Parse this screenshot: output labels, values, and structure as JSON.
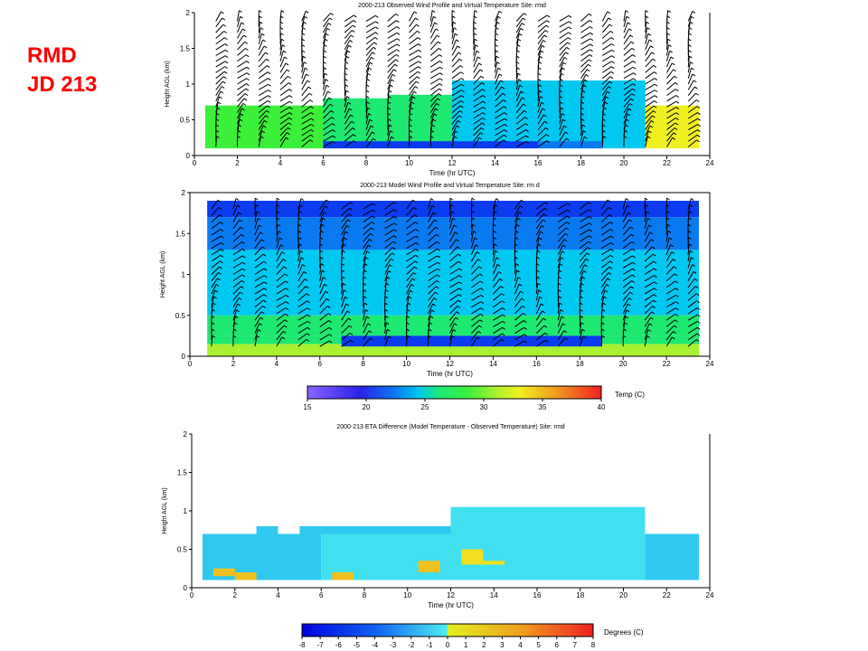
{
  "slide": {
    "site_label": "RMD",
    "day_label": "JD 213"
  },
  "colors": {
    "temperature_scale": [
      "#8a63ff",
      "#2b22e8",
      "#0b3cf0",
      "#0a7af0",
      "#00c8f0",
      "#1de872",
      "#3cf03a",
      "#a8f030",
      "#f0f020",
      "#f0b020",
      "#f07020",
      "#f02020"
    ],
    "difference_negative": [
      "#0000e0",
      "#0a35f0",
      "#1060f0",
      "#1788f0",
      "#20a8f0",
      "#30c8f0",
      "#40e0f0",
      "#50f0f0"
    ],
    "difference_positive": [
      "#e0f020",
      "#f0e020",
      "#f0c020",
      "#f0a020",
      "#f08020",
      "#f06020",
      "#f04020",
      "#f02020"
    ],
    "wind_barb": "#000000"
  },
  "icons": [
    "wind-barb-icon",
    "calm-wind-circle-icon"
  ],
  "chart_data": [
    {
      "type": "heatmap",
      "title": "2000-213   Observed Wind Profile and Virtual Temperature   Site: rmd",
      "xlabel": "Time (hr UTC)",
      "ylabel": "Height AGL (km)",
      "xlim": [
        0,
        24
      ],
      "ylim": [
        0,
        2
      ],
      "xticks": [
        "0",
        "2",
        "4",
        "6",
        "8",
        "10",
        "12",
        "14",
        "16",
        "18",
        "20",
        "22",
        "24"
      ],
      "yticks": [
        "0",
        "0.5",
        "1",
        "1.5",
        "2"
      ],
      "overlay": "wind barbs",
      "cells": [
        {
          "t0": 0.5,
          "t1": 6,
          "h0": 0.1,
          "h1": 0.7,
          "temp": 29
        },
        {
          "t0": 6,
          "t1": 9,
          "h0": 0.1,
          "h1": 0.8,
          "temp": 27
        },
        {
          "t0": 9,
          "t1": 12,
          "h0": 0.1,
          "h1": 0.85,
          "temp": 27
        },
        {
          "t0": 12,
          "t1": 21,
          "h0": 0.1,
          "h1": 1.05,
          "temp": 25
        },
        {
          "t0": 21,
          "t1": 23.5,
          "h0": 0.1,
          "h1": 0.7,
          "temp": 33
        },
        {
          "t0": 6,
          "t1": 10,
          "h0": 0.1,
          "h1": 0.2,
          "temp": 21
        },
        {
          "t0": 10,
          "t1": 16,
          "h0": 0.1,
          "h1": 0.2,
          "temp": 20
        },
        {
          "t0": 16,
          "t1": 19,
          "h0": 0.1,
          "h1": 0.2,
          "temp": 23
        }
      ]
    },
    {
      "type": "heatmap",
      "title": "2000-213   Model Wind Profile and Virtual Temperature   Site: rm d",
      "xlabel": "Time (hr UTC)",
      "ylabel": "Height AGL (km)",
      "xlim": [
        0,
        24
      ],
      "ylim": [
        0,
        2
      ],
      "xticks": [
        "0",
        "2",
        "4",
        "6",
        "8",
        "10",
        "12",
        "14",
        "16",
        "18",
        "20",
        "22",
        "24"
      ],
      "yticks": [
        "0",
        "0.5",
        "1",
        "1.5",
        "2"
      ],
      "overlay": "wind barbs",
      "vertical_profile_temp": [
        {
          "h": 0.05,
          "temp": 30
        },
        {
          "h": 0.15,
          "temp": 26
        },
        {
          "h": 0.4,
          "temp": 26
        },
        {
          "h": 0.8,
          "temp": 25
        },
        {
          "h": 1.2,
          "temp": 24
        },
        {
          "h": 1.6,
          "temp": 23
        },
        {
          "h": 1.8,
          "temp": 21
        },
        {
          "h": 1.95,
          "temp": 19
        }
      ],
      "inversion_layer": {
        "t0": 7,
        "t1": 19,
        "h0": 0.12,
        "h1": 0.25,
        "temp": 20
      }
    },
    {
      "type": "colorbar",
      "label": "Temp (C)",
      "ticks": [
        "15",
        "20",
        "25",
        "30",
        "35",
        "40"
      ],
      "range": [
        15,
        40
      ]
    },
    {
      "type": "heatmap",
      "title": "2000-213   ETA  Difference (Model Temperature - Observed Temperature)   Site: rmd",
      "xlabel": "Time (hr UTC)",
      "ylabel": "Height AGL (km)",
      "xlim": [
        0,
        24
      ],
      "ylim": [
        0,
        2
      ],
      "xticks": [
        "0",
        "2",
        "4",
        "6",
        "8",
        "10",
        "12",
        "14",
        "16",
        "18",
        "20",
        "22",
        "24"
      ],
      "yticks": [
        "0",
        "0.5",
        "1",
        "1.5",
        "2"
      ],
      "cells": [
        {
          "t0": 0.5,
          "t1": 6,
          "h0": 0.1,
          "h1": 0.7,
          "diff": -3
        },
        {
          "t0": 3,
          "t1": 4,
          "h0": 0.7,
          "h1": 0.8,
          "diff": -3
        },
        {
          "t0": 5,
          "t1": 12,
          "h0": 0.7,
          "h1": 0.8,
          "diff": -3
        },
        {
          "t0": 6,
          "t1": 12,
          "h0": 0.1,
          "h1": 0.7,
          "diff": -2
        },
        {
          "t0": 12,
          "t1": 21,
          "h0": 0.1,
          "h1": 1.05,
          "diff": -2
        },
        {
          "t0": 21,
          "t1": 23.5,
          "h0": 0.1,
          "h1": 0.7,
          "diff": -3
        },
        {
          "t0": 1,
          "t1": 2,
          "h0": 0.15,
          "h1": 0.25,
          "diff": 2
        },
        {
          "t0": 2,
          "t1": 3,
          "h0": 0.1,
          "h1": 0.2,
          "diff": 2
        },
        {
          "t0": 6.5,
          "t1": 7.5,
          "h0": 0.1,
          "h1": 0.2,
          "diff": 2
        },
        {
          "t0": 10.5,
          "t1": 11.5,
          "h0": 0.2,
          "h1": 0.35,
          "diff": 2
        },
        {
          "t0": 12.5,
          "t1": 13.5,
          "h0": 0.3,
          "h1": 0.5,
          "diff": 1
        },
        {
          "t0": 13.5,
          "t1": 14.5,
          "h0": 0.3,
          "h1": 0.35,
          "diff": 1
        }
      ]
    },
    {
      "type": "colorbar",
      "label": "Degrees (C)",
      "ticks": [
        "-8",
        "-7",
        "-6",
        "-5",
        "-4",
        "-3",
        "-2",
        "-1",
        "0",
        "1",
        "2",
        "3",
        "4",
        "5",
        "6",
        "7",
        "8"
      ],
      "range": [
        -8,
        8
      ]
    }
  ]
}
